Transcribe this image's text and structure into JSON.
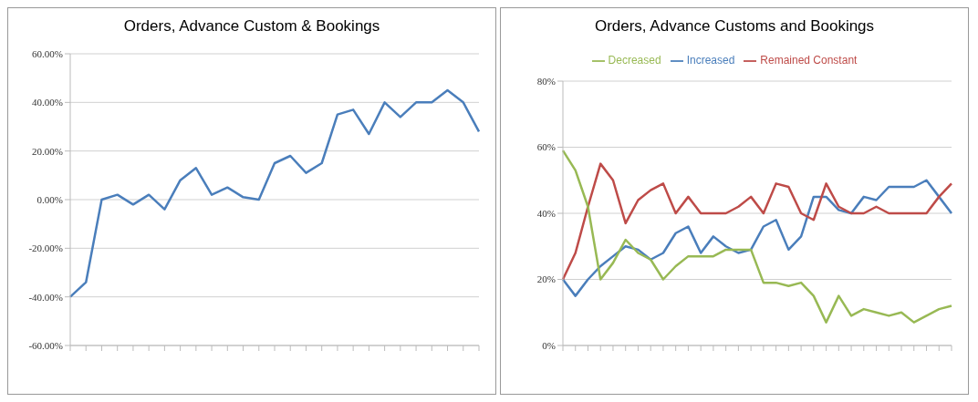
{
  "chart_data": [
    {
      "type": "line",
      "title": "Orders, Advance Custom & Bookings",
      "categories": [
        null,
        null,
        null,
        null,
        null,
        null,
        null,
        null,
        null,
        null,
        null,
        null,
        null,
        null,
        null,
        null,
        null,
        null,
        null,
        null,
        null,
        null,
        null,
        null,
        null,
        null,
        null
      ],
      "series": [
        {
          "color": "#4a7ebb",
          "values": [
            -40,
            -34,
            0,
            2,
            -2,
            2,
            -4,
            8,
            13,
            2,
            5,
            1,
            0,
            15,
            18,
            11,
            15,
            35,
            37,
            27,
            40,
            34,
            40,
            40,
            45,
            40,
            28
          ]
        }
      ],
      "ylim": [
        -60,
        60
      ],
      "yticks": [
        {
          "value": -60,
          "label": "-60.00%"
        },
        {
          "value": -40,
          "label": "-40.00%"
        },
        {
          "value": -20,
          "label": "-20.00%"
        },
        {
          "value": 0,
          "label": "0.00%"
        },
        {
          "value": 20,
          "label": "20.00%"
        },
        {
          "value": 40,
          "label": "40.00%"
        },
        {
          "value": 60,
          "label": "60.00%"
        }
      ],
      "grid": "y",
      "legend": false,
      "marker": "none"
    },
    {
      "type": "line",
      "title": "Orders, Advance Customs and Bookings",
      "categories": [
        null,
        null,
        null,
        null,
        null,
        null,
        null,
        null,
        null,
        null,
        null,
        null,
        null,
        null,
        null,
        null,
        null,
        null,
        null,
        null,
        null,
        null,
        null,
        null,
        null,
        null,
        null,
        null,
        null,
        null,
        null,
        null
      ],
      "series": [
        {
          "name": "Increased",
          "color": "#4a7ebb",
          "values": [
            20,
            15,
            20,
            24,
            27,
            30,
            29,
            26,
            28,
            34,
            36,
            28,
            33,
            30,
            28,
            29,
            36,
            38,
            29,
            33,
            45,
            45,
            41,
            40,
            45,
            44,
            48,
            48,
            48,
            50,
            45,
            40
          ]
        },
        {
          "name": "Remained Constant",
          "color": "#be4b48",
          "values": [
            20,
            28,
            42,
            55,
            50,
            37,
            44,
            47,
            49,
            40,
            45,
            40,
            40,
            40,
            42,
            45,
            40,
            49,
            48,
            40,
            38,
            49,
            42,
            40,
            40,
            42,
            40,
            40,
            40,
            40,
            45,
            49
          ]
        },
        {
          "name": "Decreased",
          "color": "#98b954",
          "values": [
            59,
            53,
            42,
            20,
            25,
            32,
            28,
            26,
            20,
            24,
            27,
            27,
            27,
            29,
            29,
            29,
            19,
            19,
            18,
            19,
            15,
            7,
            15,
            9,
            11,
            10,
            9,
            10,
            7,
            9,
            11,
            12
          ]
        }
      ],
      "ylim": [
        0,
        80
      ],
      "yticks": [
        {
          "value": 0,
          "label": "0%"
        },
        {
          "value": 20,
          "label": "20%"
        },
        {
          "value": 40,
          "label": "40%"
        },
        {
          "value": 60,
          "label": "60%"
        },
        {
          "value": 80,
          "label": "80%"
        }
      ],
      "grid": "y",
      "legend": "top",
      "marker": "none"
    }
  ]
}
